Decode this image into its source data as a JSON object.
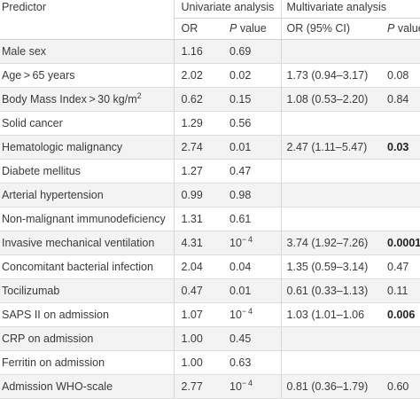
{
  "header": {
    "predictor": "Predictor",
    "univariate": "Univariate analysis",
    "multivariate": "Multivariate analysis",
    "or": "OR",
    "p_italic": "P",
    "p_rest": " value",
    "or_ci": "OR (95% CI)"
  },
  "rows": [
    {
      "predictor": "Male sex",
      "or": "1.16",
      "p": "0.69",
      "mor": "",
      "mp": "",
      "mp_bold": false
    },
    {
      "predictor": "Age > 65 years",
      "or": "2.02",
      "p": "0.02",
      "mor": "1.73 (0.94–3.17)",
      "mp": "0.08",
      "mp_bold": false
    },
    {
      "predictor": "Body Mass Index > 30 kg/m",
      "sup": "2",
      "or": "0.62",
      "p": "0.15",
      "mor": "1.08 (0.53–2.20)",
      "mp": "0.84",
      "mp_bold": false
    },
    {
      "predictor": "Solid cancer",
      "or": "1.29",
      "p": "0.56",
      "mor": "",
      "mp": "",
      "mp_bold": false
    },
    {
      "predictor": "Hematologic malignancy",
      "or": "2.74",
      "p": "0.01",
      "mor": "2.47 (1.11–5.47)",
      "mp": "0.03",
      "mp_bold": true
    },
    {
      "predictor": "Diabete mellitus",
      "or": "1.27",
      "p": "0.47",
      "mor": "",
      "mp": "",
      "mp_bold": false
    },
    {
      "predictor": "Arterial hypertension",
      "or": "0.99",
      "p": "0.98",
      "mor": "",
      "mp": "",
      "mp_bold": false
    },
    {
      "predictor": "Non-malignant immunodeficiency",
      "or": "1.31",
      "p": "0.61",
      "mor": "",
      "mp": "",
      "mp_bold": false
    },
    {
      "predictor": "Invasive mechanical ventilation",
      "or": "4.31",
      "p": "10",
      "p_sup": "− 4",
      "mor": "3.74 (1.92–7.26)",
      "mp": "0.0001",
      "mp_bold": true
    },
    {
      "predictor": "Concomitant bacterial infection",
      "or": "2.04",
      "p": "0.04",
      "mor": "1.35 (0.59–3.14)",
      "mp": "0.47",
      "mp_bold": false
    },
    {
      "predictor": "Tocilizumab",
      "or": "0.47",
      "p": "0.01",
      "mor": "0.61 (0.33–1.13)",
      "mp": "0.11",
      "mp_bold": false
    },
    {
      "predictor": "SAPS II on admission",
      "or": "1.07",
      "p": "10",
      "p_sup": "− 4",
      "mor": "1.03 (1.01–1.06",
      "mp": "0.006",
      "mp_bold": true
    },
    {
      "predictor": "CRP on admission",
      "or": "1.00",
      "p": "0.45",
      "mor": "",
      "mp": "",
      "mp_bold": false
    },
    {
      "predictor": "Ferritin on admission",
      "or": "1.00",
      "p": "0.63",
      "mor": "",
      "mp": "",
      "mp_bold": false
    },
    {
      "predictor": "Admission WHO-scale",
      "or": "2.77",
      "p": "10",
      "p_sup": "− 4",
      "mor": "0.81 (0.36–1.79)",
      "mp": "0.60",
      "mp_bold": false
    }
  ]
}
